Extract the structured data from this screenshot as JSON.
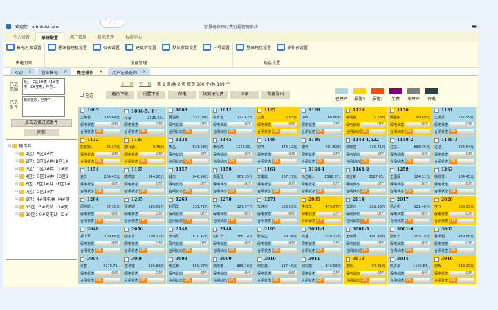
{
  "header": {
    "welcome": "欢迎您：administrator",
    "title": "智慧电表预付费远程管理系统"
  },
  "menu_tabs": [
    "个人设置",
    "系统配置",
    "用户管理",
    "售电管理",
    "报表中心"
  ],
  "ribbon": [
    {
      "label": "售电方案",
      "items": [
        "售电方案设置"
      ]
    },
    {
      "label": "设备管理",
      "items": [
        "通讯管理机设置",
        "仪表设置",
        "建筑群设置",
        "默认参数设置",
        "户号设置"
      ]
    },
    {
      "label": "角色设置",
      "items": [
        "登录角色设置",
        "操作员设置"
      ]
    }
  ],
  "doc_tabs": [
    "欢迎",
    "营业售电",
    "集控操作",
    "用户记录查询"
  ],
  "left": {
    "range_label": "已选范围",
    "range_value": "3区：C区3#表（1#变电：2#变电，户号…",
    "cond_label": "已选条件",
    "cond_value": "剩余金额，已开户…",
    "filter_button": "点击选择过滤条件",
    "refresh_button": "刷新",
    "tree_root": "建筑群",
    "tree": [
      "1区：A区1#井",
      "2区：B区1#井(B区1#",
      "3区：C区2#井（1#变",
      "4区：D区1#井（D区1",
      "6区：F区1#井（F区1#",
      "7区：G区1#井",
      "9区：4#楼电井（4#楼",
      "15区：5#变站（3#变",
      "19区：9#变电站（2#"
    ]
  },
  "pager": {
    "prev": "上一页",
    "next": "下一页",
    "info": "第 1 页/共 2 页 每页 100 个/共 109 个"
  },
  "ops": {
    "select_all": "全选",
    "buttons": [
      "电价下发",
      "设置下发",
      "保电",
      "恢复按付费",
      "拉闸",
      "数据导出"
    ]
  },
  "legend": [
    {
      "label": "已开户",
      "color": "#a8d8ea"
    },
    {
      "label": "报警1",
      "color": "#ffd400"
    },
    {
      "label": "报警2",
      "color": "#ff4a10"
    },
    {
      "label": "欠费",
      "color": "#800080"
    },
    {
      "label": "未开户",
      "color": "#808080"
    },
    {
      "label": "保电",
      "color": "#224444"
    }
  ],
  "card_labels": {
    "power": "保电状态",
    "switch": "合闸状态",
    "off": "OFF",
    "on": "ON"
  },
  "cards": [
    [
      "1003",
      "王菊香",
      "148.84元",
      "a"
    ],
    [
      "1004-5、6ー",
      "王英",
      "2329.66..",
      "a"
    ],
    [
      "1008",
      "曹温新",
      "331.08元",
      "a"
    ],
    [
      "1012",
      "岑安容..",
      "122.42元",
      "a"
    ],
    [
      "1127",
      "王鑫..",
      "5.83元",
      "y"
    ],
    [
      "1128",
      "-MM..",
      "88.86元",
      "a"
    ],
    [
      "1129",
      "戴瑞春..",
      "19.23元",
      "y"
    ],
    [
      "1130",
      "佩金丽",
      "99.49元",
      "y"
    ],
    [
      "1131",
      "王甫贵..",
      "137.59元",
      "a"
    ],
    [
      "1132",
      "彭俊娟..",
      "36.37元",
      "y"
    ],
    [
      "1133",
      "唐兵勇..",
      "9.78元",
      "y"
    ],
    [
      "1134",
      "朱品..",
      "521.63元",
      "a"
    ],
    [
      "1145",
      "李瑾虎..",
      "1542.00..",
      "a"
    ],
    [
      "1146",
      "谢萍..",
      "878.12元",
      "a"
    ],
    [
      "1146",
      "谢萍",
      "601.52元",
      "a"
    ],
    [
      "1148-1,522",
      "沈敏胜",
      "330.41元",
      "a"
    ],
    [
      "1148-2",
      "汪洁..",
      "568.35元",
      "a"
    ],
    [
      "1148-3",
      "汪洁..",
      "624.64元",
      "a"
    ],
    [
      "1154",
      "金日",
      "209.45元",
      "a"
    ],
    [
      "1155",
      "唐德庸",
      "544.26元",
      "a"
    ],
    [
      "1157",
      "钱杰",
      "646.99元",
      "a"
    ],
    [
      "1159",
      "文蕾音",
      "907.35元",
      "a"
    ],
    [
      "1161",
      "李甫廷",
      "367.17元",
      "a"
    ],
    [
      "1164-1",
      "冯立新..",
      "1596.67..",
      "a"
    ],
    [
      "1164-2",
      "冯立新",
      "3527.05..",
      "a"
    ],
    [
      "1258",
      "王國辉",
      "184.31元",
      "a"
    ],
    [
      "1263",
      "徐財雪..",
      "184.45元",
      "a"
    ],
    [
      "1264",
      "周鸿娇..",
      "57.30元",
      "a"
    ],
    [
      "1265",
      "张丽娜",
      "199.09元",
      "a"
    ],
    [
      "1269",
      "刘国华",
      "531.72元",
      "a"
    ],
    [
      "1270",
      "王坤..",
      "127.57元",
      "a"
    ],
    [
      "1271",
      "李纯杰",
      "533.03元",
      "a"
    ],
    [
      "2005",
      "牛红辛",
      "479.87元",
      "y"
    ],
    [
      "2014",
      "安建元",
      "202.95元",
      "a"
    ],
    [
      "2017",
      "杨大明",
      "121.40元",
      "a"
    ],
    [
      "2020",
      "佳飞",
      "155.93元",
      "y"
    ],
    [
      "2048",
      "郑少军",
      "109.68元",
      "a"
    ],
    [
      "2050",
      "唐杰发",
      "190.22元",
      "a"
    ],
    [
      "2144",
      "李瑞凡",
      "870.42元",
      "a"
    ],
    [
      "2148",
      "彭红华",
      "186.74元",
      "a"
    ],
    [
      "2193",
      "张先生..",
      "59.34元",
      "a"
    ],
    [
      "3001-1",
      "高雄",
      "238.37元",
      "a"
    ],
    [
      "3001-5",
      "王晓辉",
      "690.48元",
      "a"
    ],
    [
      "3001-6",
      "孙长华..",
      "293.15元",
      "a"
    ],
    [
      "3002",
      "鲁凤超",
      "439.88元",
      "a"
    ],
    [
      "3004",
      "许智",
      "2270.71..",
      "a"
    ],
    [
      "3006",
      "王冬雄",
      "125.83元",
      "a"
    ],
    [
      "3008",
      "南之翼",
      "550.97元",
      "a"
    ],
    [
      "3009",
      "苏成孝",
      "885.16元",
      "a"
    ],
    [
      "3010",
      "纪彩霞..",
      "117.49元",
      "a"
    ],
    [
      "3011",
      "纪彩霞",
      "346.06元",
      "a"
    ],
    [
      "3013",
      "王欣..",
      "97.81元",
      "y"
    ],
    [
      "3014",
      "仇贵华",
      "1103.54..",
      "a"
    ],
    [
      "3016",
      "谢晖",
      "339.29元",
      "y"
    ]
  ]
}
